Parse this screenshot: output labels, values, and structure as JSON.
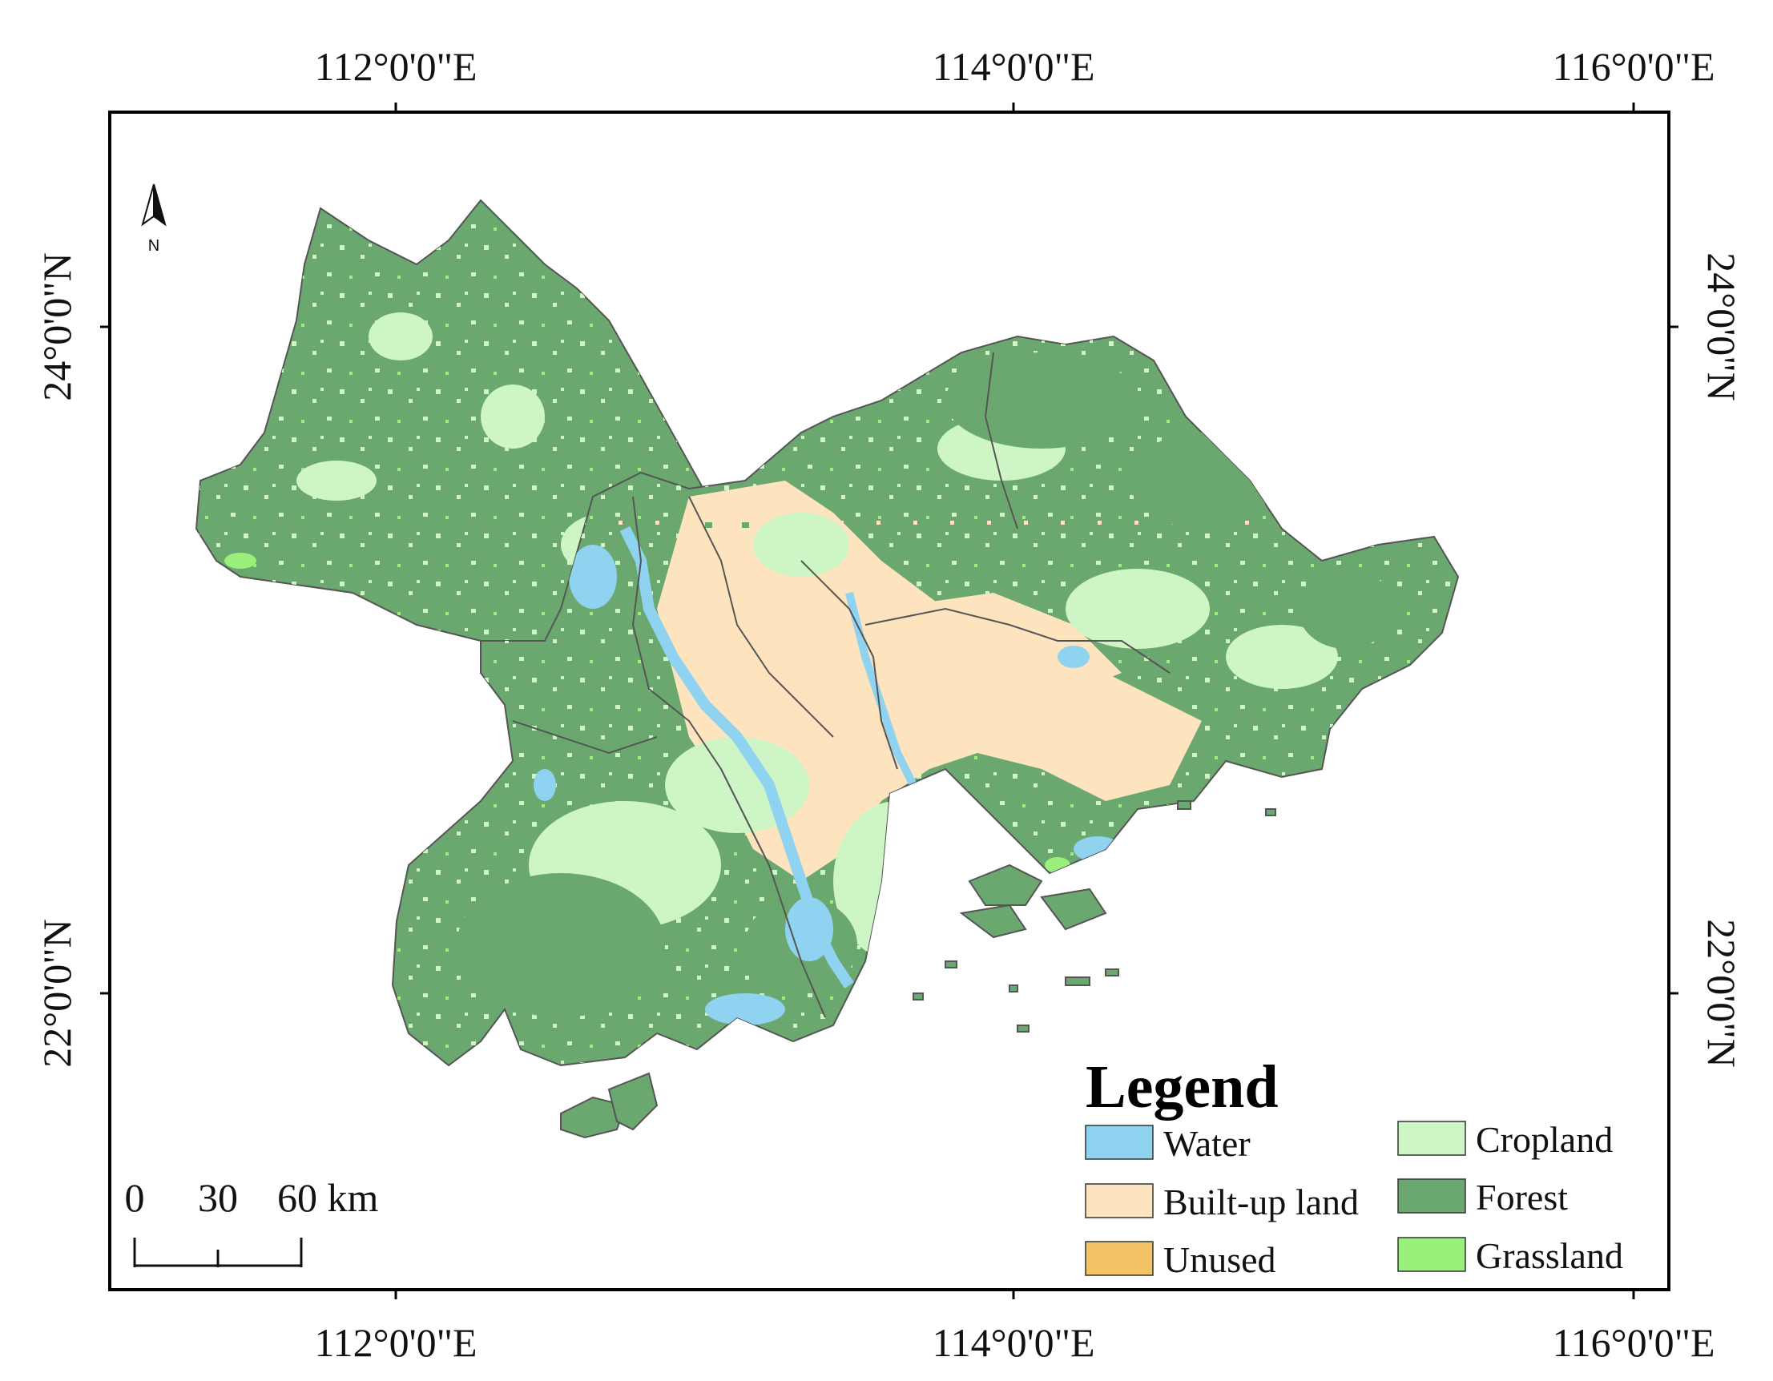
{
  "map": {
    "graticule": {
      "top_lon_labels": [
        "112°0'0\"E",
        "114°0'0\"E",
        "116°0'0\"E"
      ],
      "bottom_lon_labels": [
        "112°0'0\"E",
        "114°0'0\"E",
        "116°0'0\"E"
      ],
      "left_lat_labels": [
        "24°0'0\"N",
        "22°0'0\"N"
      ],
      "right_lat_labels": [
        "24°0'0\"N",
        "22°0'0\"N"
      ]
    },
    "north_arrow": {
      "label": "N",
      "icon": "north-arrow-icon"
    },
    "scale_bar": {
      "labels": [
        "0",
        "30",
        "60 km"
      ]
    },
    "legend": {
      "title": "Legend",
      "items": [
        {
          "label": "Water",
          "color": "#8fd3f0"
        },
        {
          "label": "Built-up land",
          "color": "#fde4bf"
        },
        {
          "label": "Unused",
          "color": "#f3c466"
        },
        {
          "label": "Cropland",
          "color": "#cdf5c6"
        },
        {
          "label": "Forest",
          "color": "#6aa86f"
        },
        {
          "label": "Grassland",
          "color": "#9af07a"
        }
      ]
    },
    "colors": {
      "frame": "#000000",
      "boundary": "#555555"
    }
  }
}
